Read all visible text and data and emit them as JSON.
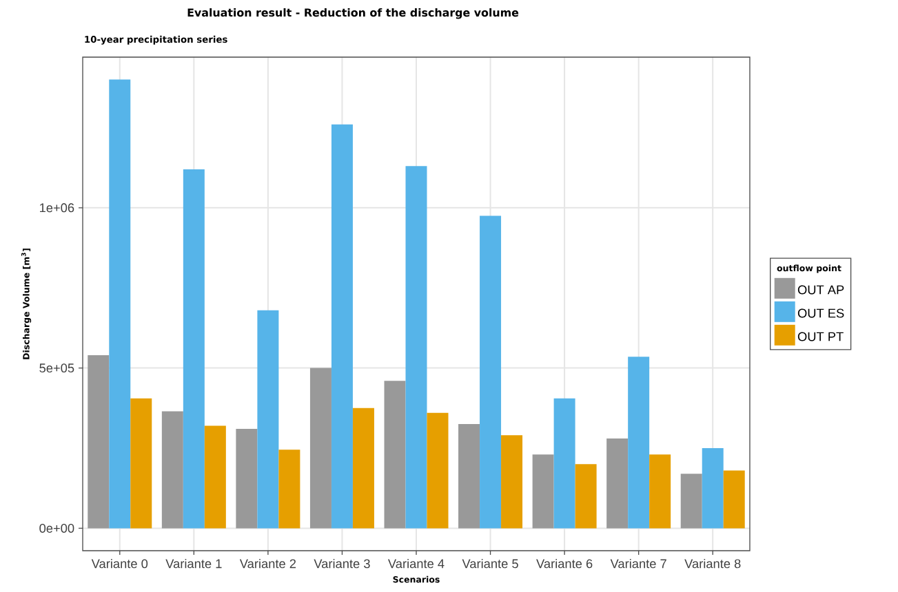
{
  "chart_data": {
    "type": "bar",
    "title": "Evaluation result  -  Reduction of the discharge volume",
    "subtitle": "10-year precipitation series",
    "xlabel": "Scenarios",
    "ylabel": "Discharge Volume  [m$^{3}$]",
    "legend_title": "outflow point",
    "categories": [
      "Variante 0",
      "Variante 1",
      "Variante 2",
      "Variante 3",
      "Variante 4",
      "Variante 5",
      "Variante 6",
      "Variante 7",
      "Variante 8"
    ],
    "series": [
      {
        "name": "OUT AP",
        "color": "#999999",
        "values": [
          540000,
          365000,
          310000,
          500000,
          460000,
          325000,
          230000,
          280000,
          170000
        ]
      },
      {
        "name": "OUT ES",
        "color": "#56b4e9",
        "values": [
          1400000,
          1120000,
          680000,
          1260000,
          1130000,
          975000,
          405000,
          535000,
          250000
        ]
      },
      {
        "name": "OUT PT",
        "color": "#e69f00",
        "values": [
          405000,
          320000,
          245000,
          375000,
          360000,
          290000,
          200000,
          230000,
          180000
        ]
      }
    ],
    "ylim": [
      -70000,
      1470000
    ],
    "yticks": [
      {
        "value": 0,
        "label": "0e+00"
      },
      {
        "value": 500000,
        "label": "5e+05"
      },
      {
        "value": 1000000,
        "label": "1e+06"
      }
    ],
    "grid": true,
    "legend": "right"
  }
}
